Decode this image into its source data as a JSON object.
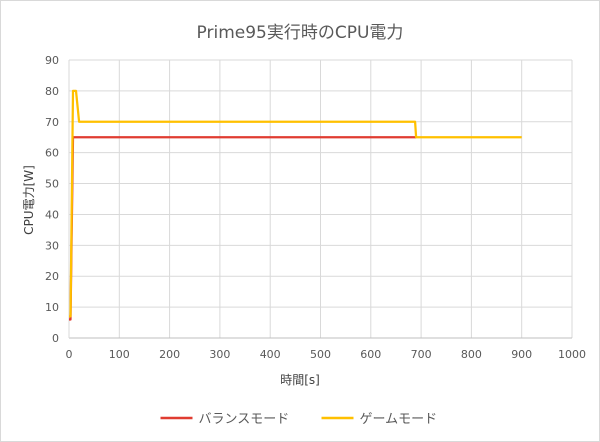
{
  "chart_data": {
    "type": "line",
    "title": "Prime95実行時のCPU電力",
    "xlabel": "時間[s]",
    "ylabel": "CPU電力[W]",
    "xlim": [
      0,
      1000
    ],
    "ylim": [
      0,
      90
    ],
    "xticks": [
      "0",
      "100",
      "200",
      "300",
      "400",
      "500",
      "600",
      "700",
      "800",
      "900",
      "1000"
    ],
    "yticks": [
      "0",
      "10",
      "20",
      "30",
      "40",
      "50",
      "60",
      "70",
      "80",
      "90"
    ],
    "grid": true,
    "legend_position": "bottom",
    "series": [
      {
        "name": "バランスモード",
        "color": "#e03c31",
        "points": [
          [
            0,
            6
          ],
          [
            3,
            6
          ],
          [
            8,
            65
          ],
          [
            690,
            65
          ]
        ]
      },
      {
        "name": "ゲームモード",
        "color": "#ffc000",
        "points": [
          [
            0,
            7
          ],
          [
            3,
            7
          ],
          [
            8,
            80
          ],
          [
            14,
            80
          ],
          [
            20,
            70
          ],
          [
            688,
            70
          ],
          [
            690,
            65
          ],
          [
            900,
            65
          ]
        ]
      }
    ]
  }
}
